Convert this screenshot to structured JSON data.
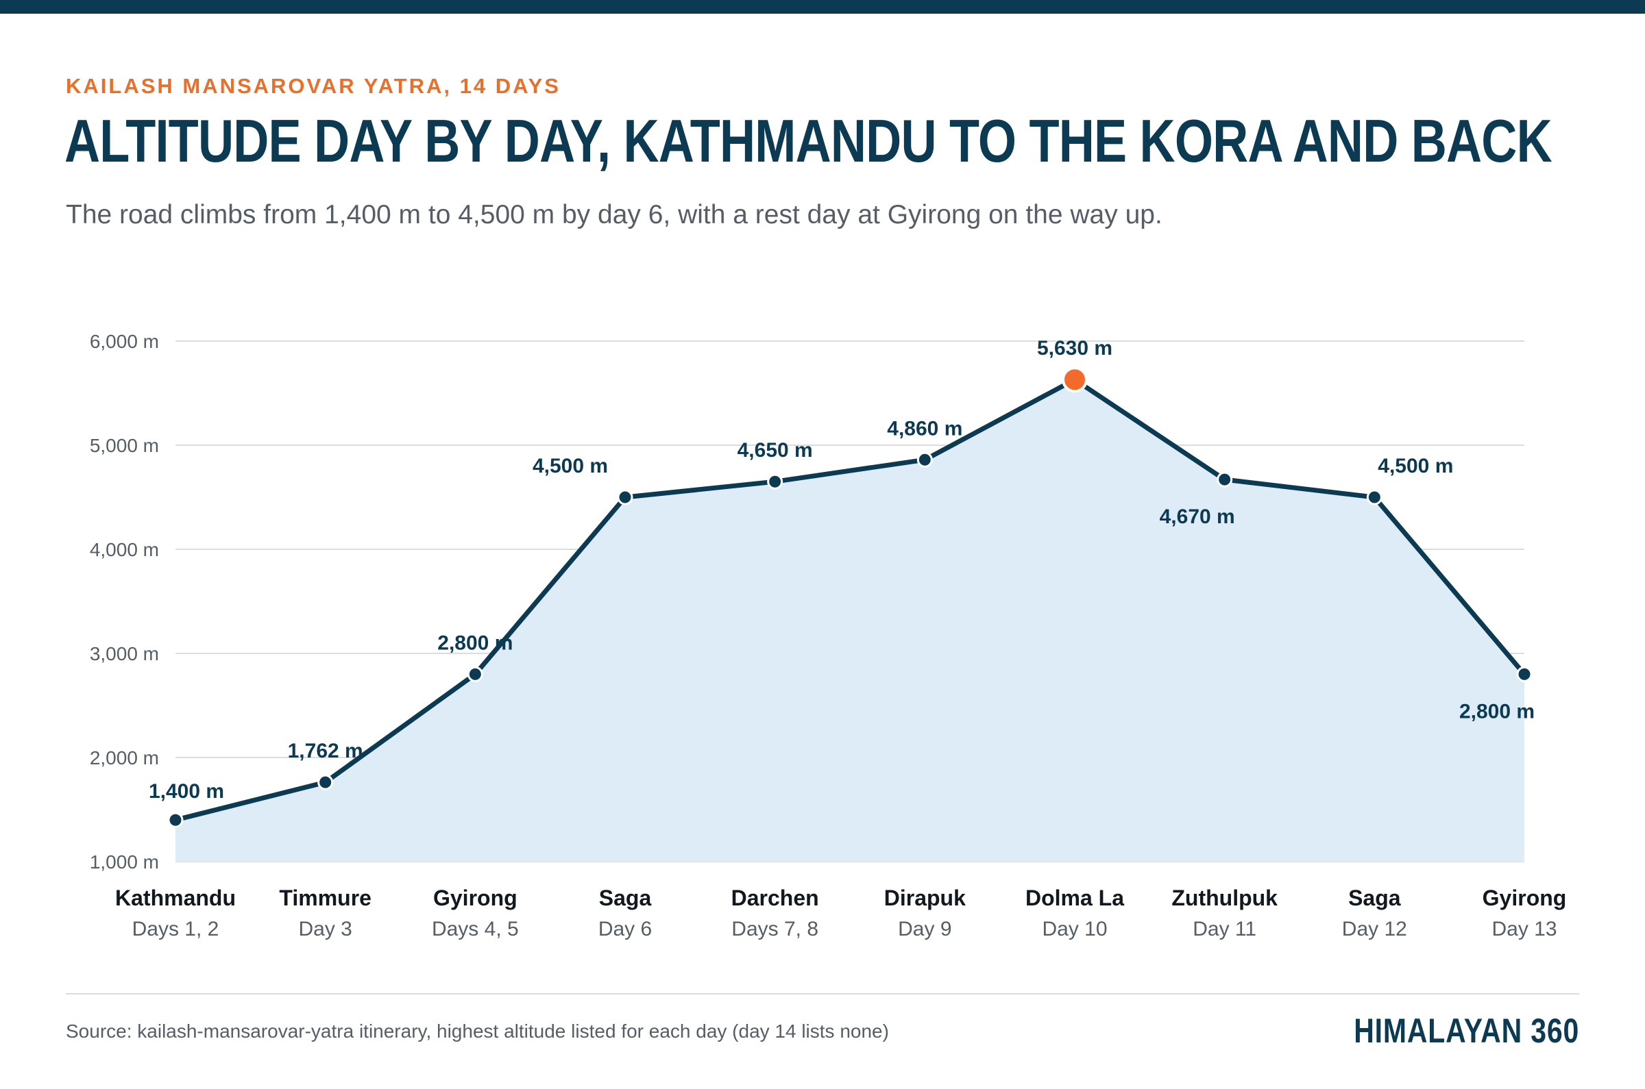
{
  "header": {
    "eyebrow": "KAILASH MANSAROVAR YATRA, 14 DAYS",
    "title": "ALTITUDE DAY BY DAY, KATHMANDU TO THE KORA AND BACK",
    "subtitle": "The road climbs from 1,400 m to 4,500 m by day 6, with a rest day at Gyirong on the way up."
  },
  "footer": {
    "source": "Source: kailash-mansarovar-yatra itinerary, highest altitude listed for each day (day 14 lists none)",
    "brand": "HIMALAYAN 360"
  },
  "colors": {
    "line": "#0b3a52",
    "fill": "#ddecf6",
    "highlight": "#f26b2a",
    "grid": "#d9dde1"
  },
  "chart_data": {
    "type": "area",
    "categories": [
      "Kathmandu",
      "Timmure",
      "Gyirong",
      "Saga",
      "Darchen",
      "Dirapuk",
      "Dolma La",
      "Zuthulpuk",
      "Saga",
      "Gyirong"
    ],
    "day_labels": [
      "Days 1, 2",
      "Day 3",
      "Days 4, 5",
      "Day 6",
      "Days 7, 8",
      "Day 9",
      "Day 10",
      "Day 11",
      "Day 12",
      "Day 13"
    ],
    "values": [
      1400,
      1762,
      2800,
      4500,
      4650,
      4860,
      5630,
      4670,
      4500,
      2800
    ],
    "data_labels": [
      "1,400 m",
      "1,762 m",
      "2,800 m",
      "4,500 m",
      "4,650 m",
      "4,860 m",
      "5,630 m",
      "4,670 m",
      "4,500 m",
      "2,800 m"
    ],
    "label_position": [
      "above",
      "above",
      "above",
      "above-left",
      "above",
      "above",
      "above",
      "below-left",
      "above-right",
      "below-left"
    ],
    "highlight_index": 6,
    "ylim": [
      1000,
      6000
    ],
    "yticks": [
      1000,
      2000,
      3000,
      4000,
      5000,
      6000
    ],
    "ytick_labels": [
      "1,000 m",
      "2,000 m",
      "3,000 m",
      "4,000 m",
      "5,000 m",
      "6,000 m"
    ],
    "grid": true
  }
}
